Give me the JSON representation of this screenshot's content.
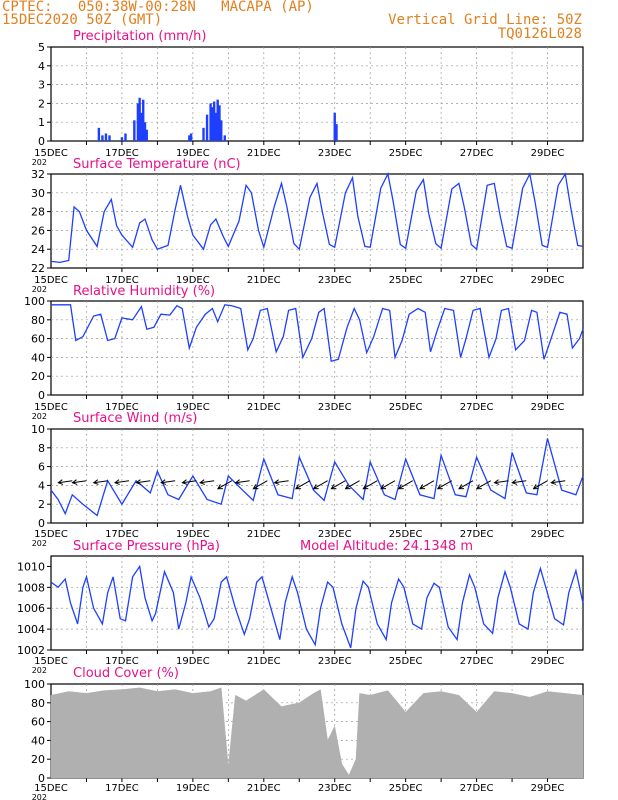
{
  "header": {
    "line1": "CPTEC:   050:38W-00:28N   MACAPA (AP)",
    "line2": "15DEC2020 50Z (GMT)",
    "grid_note": "Vertical Grid Line: 50Z",
    "code": "TQ0126L028"
  },
  "x_axis": {
    "ticks": [
      "15DEC",
      "17DEC",
      "19DEC",
      "21DEC",
      "23DEC",
      "25DEC",
      "27DEC",
      "29DEC"
    ],
    "year_label": "202"
  },
  "colors": {
    "title": "#e8108a",
    "header": "#e08020",
    "series": "#1f3fff",
    "cloud": "#b0b0b0"
  },
  "chart_data": [
    {
      "type": "bar",
      "title": "Precipitation (mm/h)",
      "ylim": [
        0,
        5
      ],
      "yticks": [
        0,
        1,
        2,
        3,
        4,
        5
      ],
      "x_days": [
        1.35,
        1.45,
        1.55,
        1.65,
        2.0,
        2.1,
        2.35,
        2.45,
        2.5,
        2.55,
        2.6,
        2.65,
        2.7,
        3.9,
        3.95,
        4.3,
        4.4,
        4.5,
        4.55,
        4.6,
        4.65,
        4.7,
        4.75,
        4.8,
        4.9,
        8.0,
        8.05
      ],
      "values": [
        0.7,
        0.3,
        0.4,
        0.3,
        0.2,
        0.4,
        1.1,
        2.0,
        2.3,
        1.5,
        2.2,
        1.0,
        0.6,
        0.3,
        0.4,
        0.7,
        1.4,
        2.0,
        1.8,
        2.1,
        1.5,
        2.2,
        1.9,
        1.1,
        0.3,
        1.5,
        0.9
      ]
    },
    {
      "type": "line",
      "title": "Surface Temperature (nC)",
      "ylim": [
        22,
        32
      ],
      "yticks": [
        22,
        24,
        26,
        28,
        30,
        32
      ],
      "x_days": [
        0,
        0.25,
        0.5,
        0.65,
        0.8,
        1.0,
        1.3,
        1.5,
        1.7,
        1.85,
        2.0,
        2.3,
        2.5,
        2.65,
        2.85,
        3.0,
        3.3,
        3.5,
        3.65,
        3.85,
        4.0,
        4.3,
        4.5,
        4.65,
        4.85,
        5.0,
        5.3,
        5.5,
        5.65,
        5.85,
        6.0,
        6.3,
        6.5,
        6.65,
        6.85,
        7.0,
        7.3,
        7.5,
        7.65,
        7.85,
        8.0,
        8.3,
        8.5,
        8.65,
        8.85,
        9.0,
        9.3,
        9.5,
        9.65,
        9.85,
        10.0,
        10.3,
        10.5,
        10.65,
        10.85,
        11.0,
        11.3,
        11.5,
        11.65,
        11.85,
        12.0,
        12.3,
        12.5,
        12.65,
        12.85,
        13.0,
        13.3,
        13.5,
        13.65,
        13.85,
        14.0,
        14.3,
        14.5,
        14.65,
        14.85,
        15.0
      ],
      "values": [
        22.7,
        22.6,
        22.8,
        28.5,
        28.0,
        26.0,
        24.3,
        28.0,
        29.3,
        26.5,
        25.5,
        24.2,
        26.8,
        27.2,
        25.0,
        24.0,
        24.4,
        28.2,
        30.8,
        27.5,
        25.5,
        24.0,
        26.6,
        27.2,
        25.4,
        24.3,
        27.0,
        30.8,
        30.0,
        26.0,
        24.2,
        28.6,
        31.0,
        28.5,
        24.6,
        24.0,
        29.5,
        31.0,
        28.0,
        24.5,
        24.2,
        30.0,
        31.6,
        27.5,
        24.3,
        24.2,
        30.5,
        32.0,
        29.0,
        24.5,
        24.1,
        30.2,
        31.4,
        27.8,
        24.6,
        24.1,
        30.4,
        31.0,
        28.5,
        24.5,
        24.0,
        30.8,
        31.0,
        27.8,
        24.3,
        24.1,
        30.5,
        32.0,
        29.0,
        24.4,
        24.2,
        30.8,
        32.0,
        28.5,
        24.4,
        24.3
      ]
    },
    {
      "type": "line",
      "title": "Relative Humidity (%)",
      "ylim": [
        0,
        100
      ],
      "yticks": [
        0,
        20,
        40,
        60,
        80,
        100
      ],
      "x_days": [
        0,
        0.3,
        0.55,
        0.7,
        0.9,
        1.2,
        1.4,
        1.6,
        1.8,
        2.0,
        2.3,
        2.55,
        2.7,
        2.9,
        3.1,
        3.35,
        3.55,
        3.7,
        3.9,
        4.1,
        4.35,
        4.55,
        4.7,
        4.9,
        5.1,
        5.35,
        5.55,
        5.7,
        5.9,
        6.1,
        6.35,
        6.55,
        6.7,
        6.9,
        7.1,
        7.35,
        7.55,
        7.7,
        7.9,
        8.1,
        8.35,
        8.55,
        8.7,
        8.9,
        9.1,
        9.35,
        9.55,
        9.7,
        9.9,
        10.1,
        10.35,
        10.55,
        10.7,
        10.9,
        11.1,
        11.35,
        11.55,
        11.7,
        11.9,
        12.1,
        12.35,
        12.55,
        12.7,
        12.9,
        13.1,
        13.35,
        13.55,
        13.7,
        13.9,
        14.1,
        14.35,
        14.55,
        14.7,
        14.9,
        15.0
      ],
      "values": [
        96,
        96,
        96,
        58,
        62,
        84,
        86,
        58,
        60,
        82,
        80,
        94,
        70,
        72,
        86,
        85,
        95,
        92,
        50,
        72,
        86,
        92,
        78,
        96,
        95,
        92,
        48,
        60,
        90,
        92,
        46,
        62,
        90,
        92,
        40,
        60,
        88,
        92,
        36,
        38,
        72,
        92,
        80,
        45,
        62,
        92,
        90,
        40,
        58,
        86,
        92,
        88,
        46,
        70,
        92,
        90,
        40,
        60,
        90,
        92,
        40,
        60,
        90,
        92,
        48,
        58,
        90,
        88,
        38,
        60,
        88,
        86,
        50,
        60,
        70
      ]
    },
    {
      "type": "line",
      "title": "Surface Wind (m/s)",
      "ylim": [
        0,
        10
      ],
      "yticks": [
        0,
        2,
        4,
        6,
        8,
        10
      ],
      "x_days": [
        0,
        0.2,
        0.4,
        0.6,
        0.9,
        1.3,
        1.6,
        2.0,
        2.4,
        2.8,
        3.0,
        3.3,
        3.6,
        4.0,
        4.4,
        4.8,
        5.0,
        5.4,
        5.7,
        6.0,
        6.4,
        6.8,
        7.0,
        7.4,
        7.7,
        8.0,
        8.4,
        8.8,
        9.0,
        9.4,
        9.7,
        10.0,
        10.4,
        10.8,
        11.0,
        11.4,
        11.7,
        12.0,
        12.4,
        12.8,
        13.0,
        13.4,
        13.7,
        14.0,
        14.4,
        14.8,
        15.0
      ],
      "values": [
        3.5,
        2.5,
        1.0,
        3.0,
        2.0,
        0.8,
        4.5,
        2.0,
        4.5,
        3.2,
        5.5,
        3.0,
        2.5,
        5.0,
        2.5,
        2.0,
        5.0,
        3.5,
        2.4,
        6.8,
        3.0,
        2.6,
        7.0,
        3.5,
        2.4,
        6.5,
        4.0,
        2.5,
        6.5,
        3.0,
        2.5,
        6.8,
        3.0,
        2.6,
        7.2,
        3.0,
        2.8,
        7.0,
        3.5,
        2.6,
        7.5,
        3.2,
        3.0,
        9.0,
        3.5,
        3.0,
        5.0
      ],
      "arrow_days": [
        0.6,
        1.0,
        1.6,
        2.2,
        2.8,
        3.5,
        4.1,
        4.6,
        5.1,
        5.6,
        6.1,
        6.7,
        7.3,
        7.8,
        8.3,
        8.7,
        9.2,
        9.7,
        10.2,
        10.8,
        11.3,
        11.9,
        12.4,
        12.9,
        13.4,
        14.0,
        14.5
      ],
      "arrow_dirs": [
        "w",
        "w",
        "w",
        "w",
        "w",
        "w",
        "w",
        "w",
        "sw",
        "w",
        "sw",
        "w",
        "sw",
        "sw",
        "sw",
        "sw",
        "sw",
        "sw",
        "sw",
        "sw",
        "sw",
        "sw",
        "sw",
        "w",
        "w",
        "sw",
        "w"
      ]
    },
    {
      "type": "line",
      "title": "Surface Pressure (hPa)",
      "note": "Model Altitude: 24.1348 m",
      "ylim": [
        1002,
        1011
      ],
      "yticks": [
        1002,
        1004,
        1006,
        1008,
        1010
      ],
      "x_days": [
        0,
        0.2,
        0.4,
        0.55,
        0.75,
        0.9,
        1.0,
        1.2,
        1.45,
        1.6,
        1.75,
        1.95,
        2.1,
        2.3,
        2.5,
        2.65,
        2.85,
        2.95,
        3.2,
        3.45,
        3.6,
        3.8,
        3.95,
        4.2,
        4.45,
        4.6,
        4.8,
        4.95,
        5.2,
        5.45,
        5.6,
        5.8,
        5.95,
        6.2,
        6.45,
        6.6,
        6.8,
        6.95,
        7.2,
        7.45,
        7.6,
        7.8,
        7.95,
        8.2,
        8.45,
        8.6,
        8.8,
        8.95,
        9.2,
        9.45,
        9.6,
        9.8,
        9.95,
        10.2,
        10.45,
        10.6,
        10.8,
        10.95,
        11.2,
        11.45,
        11.6,
        11.8,
        11.95,
        12.2,
        12.45,
        12.6,
        12.8,
        12.95,
        13.2,
        13.45,
        13.6,
        13.8,
        13.95,
        14.2,
        14.45,
        14.6,
        14.8,
        15.0
      ],
      "values": [
        1008.5,
        1008.0,
        1008.8,
        1006.5,
        1004.5,
        1008.0,
        1009.0,
        1006.0,
        1004.5,
        1007.5,
        1009.0,
        1005.0,
        1004.8,
        1009.0,
        1010.0,
        1007.0,
        1004.8,
        1005.5,
        1009.5,
        1007.5,
        1004.0,
        1006.5,
        1009.0,
        1007.0,
        1004.2,
        1005.0,
        1008.5,
        1009.0,
        1006.0,
        1003.5,
        1005.0,
        1008.5,
        1009.0,
        1006.0,
        1003.0,
        1006.5,
        1009.0,
        1007.5,
        1004.0,
        1002.5,
        1006.0,
        1008.5,
        1008.0,
        1004.5,
        1002.2,
        1006.0,
        1008.6,
        1008.0,
        1004.5,
        1003.0,
        1006.5,
        1008.8,
        1008.0,
        1004.5,
        1004.0,
        1007.0,
        1008.4,
        1008.0,
        1004.2,
        1003.0,
        1006.5,
        1009.2,
        1008.0,
        1004.5,
        1003.6,
        1007.0,
        1009.5,
        1008.0,
        1004.5,
        1004.0,
        1007.5,
        1009.8,
        1008.0,
        1005.0,
        1004.4,
        1007.5,
        1009.6,
        1006.5
      ]
    },
    {
      "type": "area",
      "title": "Cloud Cover (%)",
      "ylim": [
        0,
        100
      ],
      "yticks": [
        0,
        20,
        40,
        60,
        80,
        100
      ],
      "x_days": [
        0,
        0.5,
        1.0,
        1.5,
        2.0,
        2.5,
        3.0,
        3.5,
        4.0,
        4.5,
        4.8,
        5.0,
        5.2,
        5.5,
        6.0,
        6.5,
        7.0,
        7.4,
        7.6,
        7.8,
        8.0,
        8.2,
        8.4,
        8.6,
        8.7,
        9.0,
        9.5,
        10.0,
        10.5,
        11.0,
        11.5,
        12.0,
        12.5,
        13.0,
        13.5,
        14.0,
        14.5,
        15.0
      ],
      "values": [
        88,
        92,
        90,
        93,
        94,
        96,
        92,
        94,
        90,
        92,
        96,
        12,
        88,
        82,
        94,
        76,
        80,
        90,
        94,
        40,
        55,
        15,
        3,
        20,
        90,
        88,
        93,
        70,
        90,
        92,
        88,
        70,
        92,
        90,
        86,
        92,
        90,
        88
      ]
    }
  ]
}
